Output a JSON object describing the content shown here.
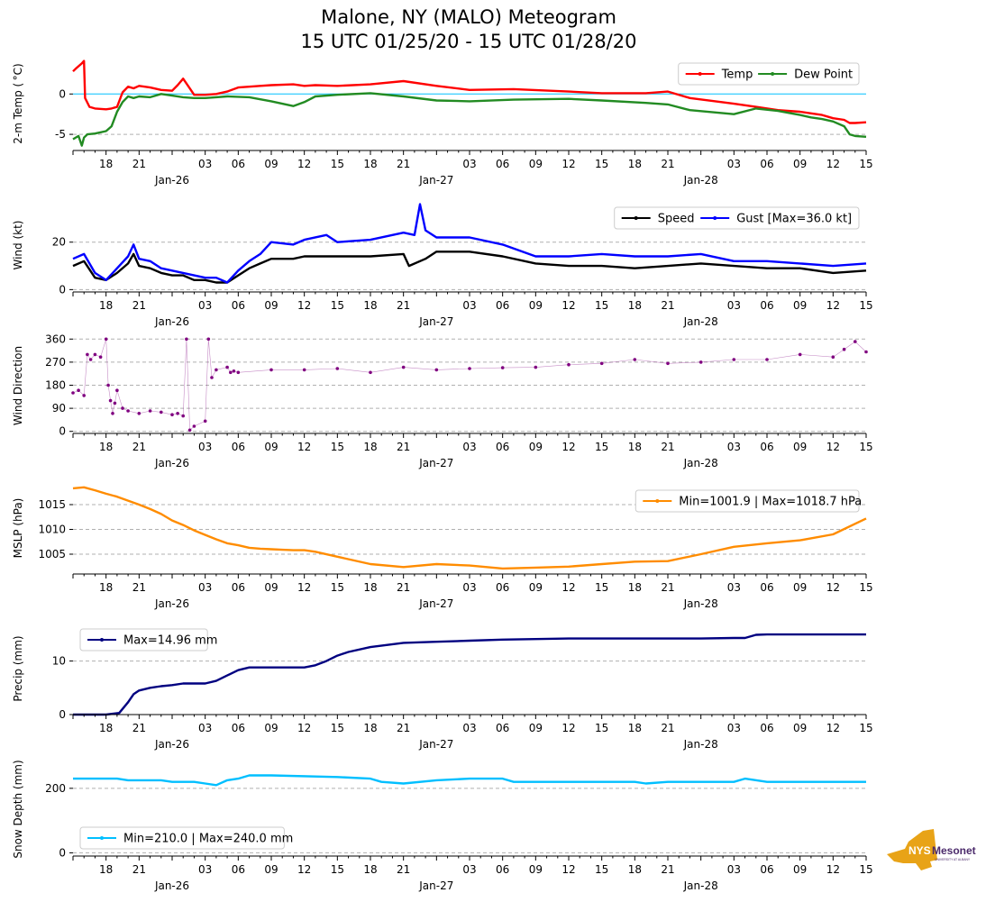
{
  "title": {
    "line1": "Malone, NY (MALO) Meteogram",
    "line2": "15 UTC 01/25/20 - 15 UTC 01/28/20"
  },
  "logo": {
    "text": "NYS",
    "text2": "Mesonet",
    "subtext": "UNIVERSITY AT ALBANY"
  },
  "colors": {
    "temp": "#ff0000",
    "dew": "#228b22",
    "speed": "#000000",
    "gust": "#0000ff",
    "dir": "#800080",
    "mslp": "#ff8c00",
    "precip": "#000080",
    "snow": "#00bfff",
    "zeroline": "#00bfff",
    "logo_gold": "#e8a317",
    "logo_purple": "#4b2a6b"
  },
  "x_axis": {
    "hours_total": 72,
    "ticks": [
      "18",
      "21",
      "03",
      "06",
      "09",
      "12",
      "15",
      "18",
      "21",
      "03",
      "06",
      "09",
      "12",
      "15",
      "18",
      "21",
      "03",
      "06",
      "09",
      "12",
      "15"
    ],
    "tick_hours": [
      3,
      6,
      12,
      15,
      18,
      21,
      24,
      27,
      30,
      36,
      39,
      42,
      45,
      48,
      51,
      54,
      60,
      63,
      66,
      69,
      72
    ],
    "date_labels": [
      "Jan-26",
      "Jan-27",
      "Jan-28"
    ],
    "date_hours": [
      9,
      33,
      57
    ]
  },
  "chart_data": [
    {
      "type": "line",
      "ylabel": "2-m Temp ($^\\circ$C)",
      "ylabel_display": "2-m Temp ( °C)",
      "ylim": [
        -7,
        4.5
      ],
      "yticks": [
        0,
        -5
      ],
      "ytick_labels": [
        "0",
        "-5"
      ],
      "grid_dashed": [
        -5
      ],
      "zero_line": 0,
      "legend": {
        "location": "top-right",
        "entries": [
          "Temp",
          "Dew Point"
        ]
      },
      "series": [
        {
          "name": "Temp",
          "color": "#ff0000",
          "x": [
            0,
            0.3,
            0.8,
            1.0,
            1.1,
            1.5,
            2,
            3,
            3.5,
            4,
            4.5,
            5,
            5.5,
            6,
            7,
            8,
            9,
            9.5,
            10,
            10.5,
            11,
            12,
            13,
            14,
            15,
            16,
            17,
            18,
            20,
            21,
            22,
            24,
            27,
            30,
            33,
            36,
            40,
            45,
            48,
            52,
            54,
            56,
            60,
            62,
            64,
            66,
            67,
            68,
            69,
            70,
            70.5,
            71,
            72
          ],
          "values": [
            2.8,
            3.2,
            3.8,
            4.1,
            -0.5,
            -1.6,
            -1.8,
            -1.9,
            -1.8,
            -1.6,
            0.2,
            0.9,
            0.7,
            1.0,
            0.8,
            0.5,
            0.4,
            1.1,
            1.9,
            0.9,
            -0.1,
            -0.1,
            0,
            0.3,
            0.8,
            0.9,
            1.0,
            1.1,
            1.2,
            1.0,
            1.1,
            1.0,
            1.2,
            1.6,
            1.0,
            0.5,
            0.6,
            0.3,
            0.1,
            0.1,
            0.3,
            -0.5,
            -1.2,
            -1.6,
            -2.0,
            -2.2,
            -2.4,
            -2.6,
            -3.0,
            -3.2,
            -3.6,
            -3.6,
            -3.5
          ]
        },
        {
          "name": "Dew Point",
          "color": "#228b22",
          "x": [
            0,
            0.5,
            0.8,
            1.0,
            1.3,
            2,
            3,
            3.5,
            4,
            4.5,
            5,
            5.5,
            6,
            7,
            8,
            9,
            10,
            11,
            12,
            14,
            16,
            18,
            20,
            21,
            22,
            24,
            27,
            30,
            33,
            36,
            40,
            45,
            48,
            52,
            54,
            56,
            60,
            62,
            64,
            66,
            67,
            68,
            69,
            70,
            70.5,
            71,
            72
          ],
          "values": [
            -5.6,
            -5.2,
            -6.4,
            -5.4,
            -5.0,
            -4.9,
            -4.6,
            -4.0,
            -2.2,
            -1.0,
            -0.3,
            -0.5,
            -0.3,
            -0.4,
            0,
            -0.2,
            -0.4,
            -0.5,
            -0.5,
            -0.3,
            -0.4,
            -0.9,
            -1.5,
            -1.0,
            -0.3,
            -0.1,
            0.1,
            -0.3,
            -0.8,
            -0.9,
            -0.7,
            -0.6,
            -0.8,
            -1.1,
            -1.3,
            -2.0,
            -2.5,
            -1.8,
            -2.1,
            -2.6,
            -2.9,
            -3.1,
            -3.4,
            -4.0,
            -5.0,
            -5.2,
            -5.3
          ]
        }
      ]
    },
    {
      "type": "line",
      "ylabel": "Wind (kt)",
      "ylim": [
        -1,
        37
      ],
      "yticks": [
        20,
        0
      ],
      "ytick_labels": [
        "20",
        "0"
      ],
      "grid_dashed": [
        20,
        0
      ],
      "legend": {
        "location": "top-right",
        "entries": [
          "Speed",
          "Gust [Max=36.0 kt]"
        ]
      },
      "series": [
        {
          "name": "Speed",
          "color": "#000000",
          "x": [
            0,
            1,
            2,
            3,
            4,
            5,
            5.5,
            6,
            7,
            8,
            9,
            10,
            11,
            12,
            13,
            14,
            15,
            16,
            17,
            18,
            20,
            21,
            24,
            27,
            30,
            30.5,
            32,
            33,
            36,
            39,
            42,
            45,
            48,
            51,
            54,
            57,
            60,
            63,
            66,
            69,
            72
          ],
          "values": [
            10,
            12,
            5,
            4,
            7,
            11,
            15,
            10,
            9,
            7,
            6,
            6,
            4,
            4,
            3,
            3,
            6,
            9,
            11,
            13,
            13,
            14,
            14,
            14,
            15,
            10,
            13,
            16,
            16,
            14,
            11,
            10,
            10,
            9,
            10,
            11,
            10,
            9,
            9,
            7,
            8
          ]
        },
        {
          "name": "Gust [Max=36.0 kt]",
          "color": "#0000ff",
          "x": [
            0,
            1,
            2,
            3,
            4,
            5,
            5.5,
            6,
            7,
            8,
            9,
            10,
            11,
            12,
            13,
            14,
            15,
            16,
            17,
            18,
            20,
            21,
            23,
            24,
            27,
            30,
            31,
            31.5,
            32,
            33,
            36,
            39,
            42,
            45,
            48,
            51,
            54,
            57,
            60,
            63,
            66,
            69,
            72
          ],
          "values": [
            13,
            15,
            7,
            4,
            9,
            14,
            19,
            13,
            12,
            9,
            8,
            7,
            6,
            5,
            5,
            3,
            8,
            12,
            15,
            20,
            19,
            21,
            23,
            20,
            21,
            24,
            23,
            36,
            25,
            22,
            22,
            19,
            14,
            14,
            15,
            14,
            14,
            15,
            12,
            12,
            11,
            10,
            11
          ]
        }
      ]
    },
    {
      "type": "scatter",
      "ylabel": "Wind Direction",
      "ylim": [
        -8,
        368
      ],
      "yticks": [
        360,
        270,
        180,
        90,
        0
      ],
      "ytick_labels": [
        "360",
        "270",
        "180",
        "90",
        "0"
      ],
      "grid_dashed": [
        360,
        270,
        180,
        90,
        0
      ],
      "series": [
        {
          "name": "Direction",
          "color": "#800080",
          "x": [
            0,
            0.5,
            1,
            1.3,
            1.6,
            2,
            2.5,
            3,
            3.2,
            3.4,
            3.6,
            3.8,
            4,
            4.5,
            5,
            6,
            7,
            8,
            9,
            9.5,
            10,
            10.3,
            10.6,
            11,
            12,
            12.3,
            12.6,
            13,
            14,
            14.3,
            14.6,
            15,
            18,
            21,
            24,
            27,
            30,
            33,
            36,
            39,
            42,
            45,
            48,
            51,
            54,
            57,
            60,
            63,
            66,
            69,
            70,
            71,
            72
          ],
          "values": [
            150,
            160,
            140,
            300,
            280,
            300,
            290,
            360,
            180,
            120,
            70,
            110,
            160,
            90,
            80,
            70,
            80,
            75,
            65,
            70,
            60,
            360,
            5,
            20,
            40,
            360,
            210,
            240,
            250,
            230,
            235,
            230,
            240,
            240,
            245,
            230,
            250,
            240,
            245,
            248,
            250,
            260,
            265,
            280,
            265,
            270,
            280,
            280,
            300,
            290,
            320,
            350,
            310
          ]
        }
      ]
    },
    {
      "type": "line",
      "ylabel": "MSLP (hPa)",
      "ylim": [
        1001,
        1019
      ],
      "yticks": [
        1015,
        1010,
        1005
      ],
      "ytick_labels": [
        "1015",
        "1010",
        "1005"
      ],
      "grid_dashed": [
        1015,
        1010,
        1005
      ],
      "legend": {
        "location": "top-right",
        "entries": [
          "Min=1001.9 | Max=1018.7 hPa"
        ]
      },
      "series": [
        {
          "name": "Min=1001.9 | Max=1018.7 hPa",
          "color": "#ff8c00",
          "x": [
            0,
            1,
            2,
            3,
            4,
            5,
            6,
            7,
            8,
            9,
            10,
            11,
            12,
            13,
            14,
            15,
            16,
            17,
            18,
            19,
            20,
            21,
            22,
            24,
            27,
            30,
            33,
            36,
            39,
            42,
            45,
            48,
            51,
            54,
            57,
            60,
            63,
            66,
            69,
            72
          ],
          "values": [
            1018.3,
            1018.5,
            1017.9,
            1017.2,
            1016.6,
            1015.8,
            1015.0,
            1014.1,
            1013.1,
            1011.8,
            1010.9,
            1009.8,
            1008.9,
            1008.0,
            1007.2,
            1006.8,
            1006.3,
            1006.1,
            1006.0,
            1005.9,
            1005.8,
            1005.8,
            1005.5,
            1004.5,
            1003.0,
            1002.4,
            1003.0,
            1002.7,
            1002.1,
            1002.3,
            1002.5,
            1003.0,
            1003.5,
            1003.6,
            1005.0,
            1006.5,
            1007.2,
            1007.8,
            1009.0,
            1012.2
          ]
        }
      ]
    },
    {
      "type": "line",
      "ylabel": "Precip (mm)",
      "ylim": [
        0,
        17
      ],
      "yticks": [
        10,
        0
      ],
      "ytick_labels": [
        "10",
        "0"
      ],
      "grid_dashed": [
        10
      ],
      "legend": {
        "location": "top-left",
        "entries": [
          "Max=14.96 mm"
        ]
      },
      "series": [
        {
          "name": "Max=14.96 mm",
          "color": "#000080",
          "x": [
            0,
            3,
            4.2,
            5,
            5.5,
            6,
            7,
            8,
            9,
            10,
            12,
            13,
            14,
            15,
            16,
            18,
            20,
            21,
            22,
            23,
            24,
            25,
            27,
            30,
            33,
            36,
            39,
            42,
            45,
            48,
            51,
            54,
            57,
            60,
            61,
            62,
            63,
            66,
            69,
            72
          ],
          "values": [
            0,
            0,
            0.3,
            2.3,
            3.8,
            4.5,
            5.0,
            5.3,
            5.5,
            5.8,
            5.8,
            6.3,
            7.3,
            8.3,
            8.8,
            8.8,
            8.8,
            8.8,
            9.2,
            10.0,
            11.0,
            11.7,
            12.6,
            13.4,
            13.6,
            13.8,
            14.0,
            14.1,
            14.2,
            14.2,
            14.2,
            14.2,
            14.2,
            14.3,
            14.3,
            14.9,
            14.96,
            14.96,
            14.96,
            14.96
          ]
        }
      ]
    },
    {
      "type": "line",
      "ylabel": "Snow Depth (mm)",
      "ylim": [
        -10,
        275
      ],
      "yticks": [
        200,
        0
      ],
      "ytick_labels": [
        "200",
        "0"
      ],
      "grid_dashed": [
        200,
        0
      ],
      "legend": {
        "location": "bottom-left",
        "entries": [
          "Min=210.0 | Max=240.0 mm"
        ]
      },
      "series": [
        {
          "name": "Min=210.0 | Max=240.0 mm",
          "color": "#00bfff",
          "x": [
            0,
            2,
            4,
            5,
            8,
            9,
            11,
            12,
            13,
            14,
            15,
            16,
            18,
            24,
            27,
            28,
            30,
            33,
            36,
            39,
            40,
            42,
            45,
            48,
            51,
            52,
            54,
            57,
            60,
            61,
            63,
            66,
            69,
            72
          ],
          "values": [
            230,
            230,
            230,
            225,
            225,
            220,
            220,
            215,
            210,
            225,
            230,
            240,
            240,
            235,
            230,
            220,
            215,
            225,
            230,
            230,
            220,
            220,
            220,
            220,
            220,
            215,
            220,
            220,
            220,
            230,
            220,
            220,
            220,
            220
          ]
        }
      ]
    }
  ]
}
